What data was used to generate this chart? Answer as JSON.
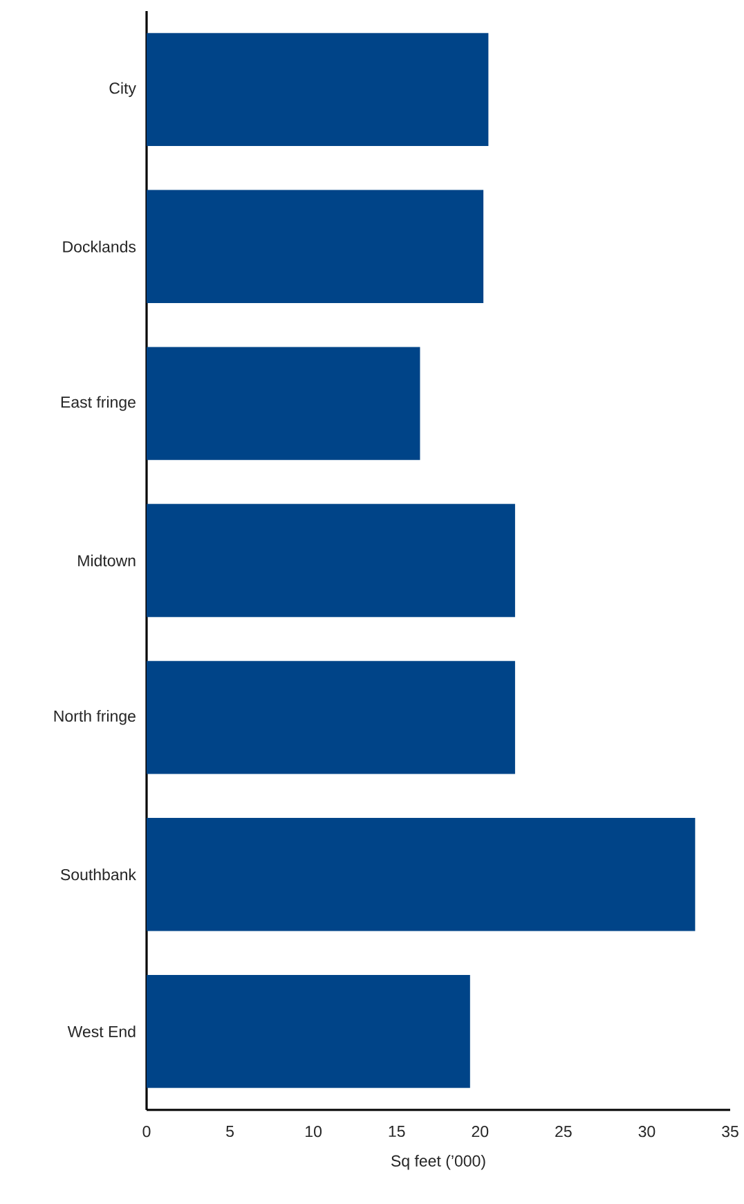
{
  "chart_data": {
    "type": "bar",
    "orientation": "horizontal",
    "xlabel": "Sq feet (’000)",
    "categories": [
      "City",
      "Docklands",
      "East fringe",
      "Midtown",
      "North fringe",
      "Southbank",
      "West End"
    ],
    "values": [
      20.5,
      20.2,
      16.4,
      22.1,
      22.1,
      32.9,
      19.4
    ],
    "color": "#004488",
    "xlim": [
      0,
      35
    ],
    "xticks": [
      0,
      5,
      10,
      15,
      20,
      25,
      30,
      35
    ]
  }
}
